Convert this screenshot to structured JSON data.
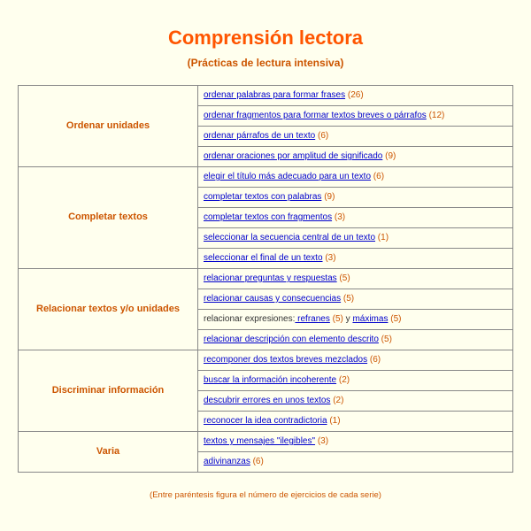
{
  "header": {
    "title": "Comprensión lectora",
    "subtitle": "(Prácticas de lectura intensiva)"
  },
  "categories": [
    {
      "name": "Ordenar unidades",
      "items": [
        {
          "text": "ordenar palabras para formar frases",
          "count": "(26)"
        },
        {
          "text": "ordenar fragmentos para formar textos breves o párrafos",
          "count": "(12)"
        },
        {
          "text": "ordenar párrafos de un texto",
          "count": "(6)"
        },
        {
          "text": "ordenar oraciones por amplitud de significado",
          "count": "(9)"
        }
      ]
    },
    {
      "name": "Completar textos",
      "items": [
        {
          "text": "elegir el título más adecuado para un texto",
          "count": "(6)"
        },
        {
          "text": "completar textos con palabras",
          "count": "(9)"
        },
        {
          "text": "completar textos con fragmentos",
          "count": "(3)"
        },
        {
          "text": "seleccionar la secuencia central de un texto",
          "count": "(1)"
        },
        {
          "text": "seleccionar el final de un texto",
          "count": "(3)"
        }
      ]
    },
    {
      "name": "Relacionar textos y/o unidades",
      "items": [
        {
          "text": "relacionar preguntas y respuestas",
          "count": "(5)"
        },
        {
          "text": "relacionar causas y consecuencias",
          "count": "(5)"
        },
        {
          "special": "expresiones"
        },
        {
          "text": "relacionar descripción con elemento descrito",
          "count": "(5)"
        }
      ]
    },
    {
      "name": "Discriminar información",
      "items": [
        {
          "text": "recomponer dos textos breves mezclados",
          "count": "(6)"
        },
        {
          "text": "buscar la información incoherente",
          "count": "(2)"
        },
        {
          "text": "descubrir errores en unos textos",
          "count": "(2)"
        },
        {
          "text": "reconocer la idea contradictoria",
          "count": "(1)"
        }
      ]
    },
    {
      "name": "Varia",
      "items": [
        {
          "text": "textos y mensajes \"ilegibles\"",
          "count": "(3)"
        },
        {
          "text": "adivinanzas",
          "count": "(6)"
        }
      ]
    }
  ],
  "expresiones": {
    "prefix": "relacionar expresiones:",
    "link1": " refranes",
    "count1": "(5)",
    "sep": " y ",
    "link2": "máximas",
    "count2": "(5)"
  },
  "footnote": "(Entre paréntesis figura el número de ejercicios de cada serie)"
}
